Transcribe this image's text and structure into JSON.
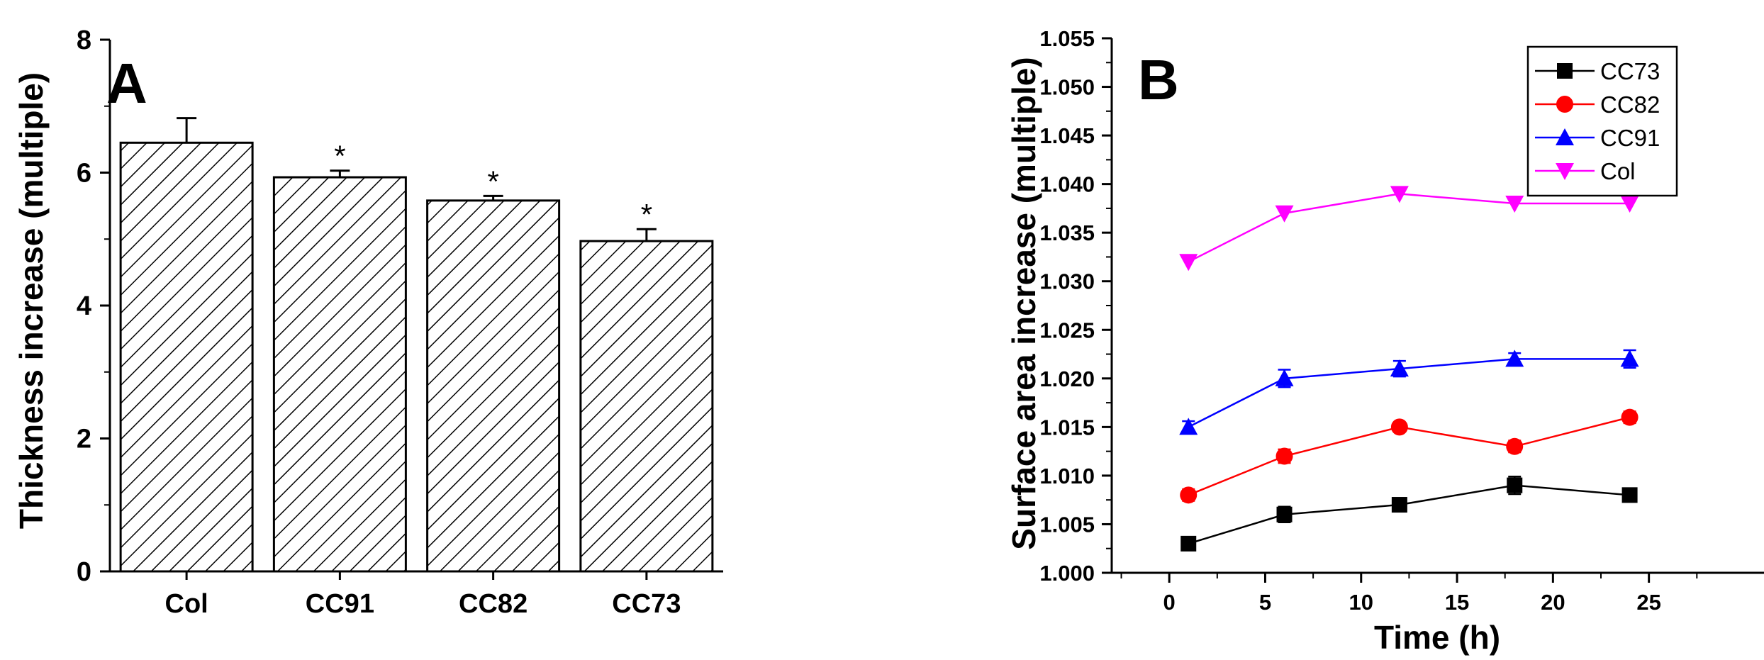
{
  "chart_data": [
    {
      "type": "bar",
      "panel_label": "A",
      "categories": [
        "Col",
        "CC91",
        "CC82",
        "CC73"
      ],
      "values": [
        6.45,
        5.93,
        5.58,
        4.97
      ],
      "error_up": [
        0.37,
        0.1,
        0.07,
        0.18
      ],
      "significance": [
        "",
        "*",
        "*",
        "*"
      ],
      "xlabel": "",
      "ylabel": "Thickness increase (multiple)",
      "ylim": [
        0,
        8
      ],
      "yticks": [
        0,
        2,
        4,
        6,
        8
      ],
      "grid": false,
      "bar_fill": "diagonal-hatch"
    },
    {
      "type": "line",
      "panel_label": "B",
      "x": [
        1,
        6,
        12,
        18,
        24
      ],
      "series": [
        {
          "name": "CC73",
          "color": "#000000",
          "marker": "square",
          "values": [
            1.003,
            1.006,
            1.007,
            1.009,
            1.008
          ],
          "errors": [
            0.0003,
            0.0008,
            0.0006,
            0.0009,
            0.0005
          ]
        },
        {
          "name": "CC82",
          "color": "#ff0000",
          "marker": "circle",
          "values": [
            1.008,
            1.012,
            1.015,
            1.013,
            1.016
          ],
          "errors": [
            0.0006,
            0.0007,
            0.0004,
            0.0006,
            0.0006
          ]
        },
        {
          "name": "CC91",
          "color": "#0000ff",
          "marker": "triangle-up",
          "values": [
            1.015,
            1.02,
            1.021,
            1.022,
            1.022
          ],
          "errors": [
            0.0006,
            0.0009,
            0.0008,
            0.0006,
            0.0009
          ]
        },
        {
          "name": "Col",
          "color": "#ff00ff",
          "marker": "triangle-down",
          "values": [
            1.032,
            1.037,
            1.039,
            1.038,
            1.038
          ],
          "errors": [
            0,
            0,
            0,
            0,
            0
          ]
        }
      ],
      "xlabel": "Time (h)",
      "ylabel": "Surface area increase (multiple)",
      "xlim": [
        -3,
        31
      ],
      "ylim": [
        1.0,
        1.055
      ],
      "xticks": [
        0,
        5,
        10,
        15,
        20,
        25
      ],
      "yticks": [
        1.0,
        1.005,
        1.01,
        1.015,
        1.02,
        1.025,
        1.03,
        1.035,
        1.04,
        1.045,
        1.05,
        1.055
      ],
      "ytick_labels": [
        "1.000",
        "1.005",
        "1.010",
        "1.015",
        "1.020",
        "1.025",
        "1.030",
        "1.035",
        "1.040",
        "1.045",
        "1.050",
        "1.055"
      ],
      "legend_position": "top-right",
      "grid": false
    }
  ]
}
